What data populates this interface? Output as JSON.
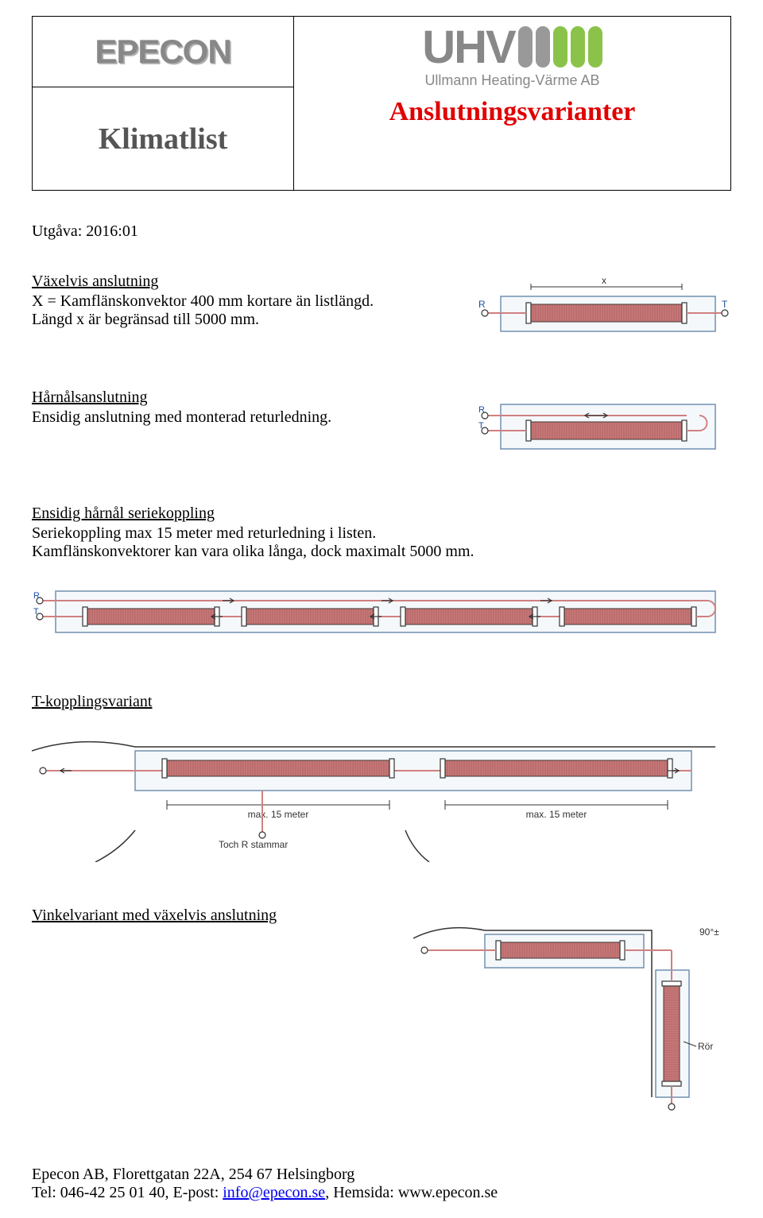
{
  "logos": {
    "epecon_text": "EPECON",
    "uhv_text": "UHV",
    "uhv_tagline": "Ullmann Heating-Värme AB",
    "uhv_bar_colors": [
      "#999999",
      "#999999",
      "#8bc34a",
      "#8bc34a",
      "#8bc34a"
    ]
  },
  "header": {
    "klimatlist": "Klimatlist",
    "klimatlist_color": "#555555",
    "anslutning_title": "Anslutningsvarianter",
    "anslutning_color": "#e00000"
  },
  "utgava": "Utgåva: 2016:01",
  "sections": {
    "vaxelvis": {
      "title": "Växelvis anslutning",
      "line1": "X = Kamflänskonvektor 400 mm kortare än listlängd.",
      "line2": "Längd x är begränsad till 5000 mm."
    },
    "harnal": {
      "title": "Hårnålsanslutning",
      "line1": "Ensidig anslutning med monterad returledning."
    },
    "ensidig": {
      "title": "Ensidig hårnål seriekoppling",
      "line1": "Seriekoppling max 15 meter med returledning i listen.",
      "line2": "Kamflänskonvektorer kan vara olika långa, dock maximalt 5000 mm."
    },
    "tkoppling": {
      "title": "T-kopplingsvariant"
    },
    "vinkel": {
      "title": "Vinkelvariant med växelvis anslutning"
    }
  },
  "diagrams": {
    "colors": {
      "convector": "#c87878",
      "pipe": "#d08080",
      "node": "#ffffff",
      "node_stroke": "#333333",
      "bracket": "#333333",
      "frame_stroke": "#7090b0",
      "frame_fill": "#f5f8fb",
      "arrow": "#333333",
      "label": "#2050a0",
      "wall": "#333333"
    },
    "labels": {
      "R": "R",
      "T": "T",
      "x": "x",
      "max15": "max. 15 meter",
      "toch": "Toch R stammar",
      "deg90": "90°±",
      "ror": "Rör"
    }
  },
  "footer": {
    "line1": "Epecon AB, Florettgatan 22A, 254 67 Helsingborg",
    "line2_pre": "Tel: 046-42 25 01 40, E-post: ",
    "email": "info@epecon.se",
    "line2_mid": ", Hemsida: www.epecon.se"
  }
}
